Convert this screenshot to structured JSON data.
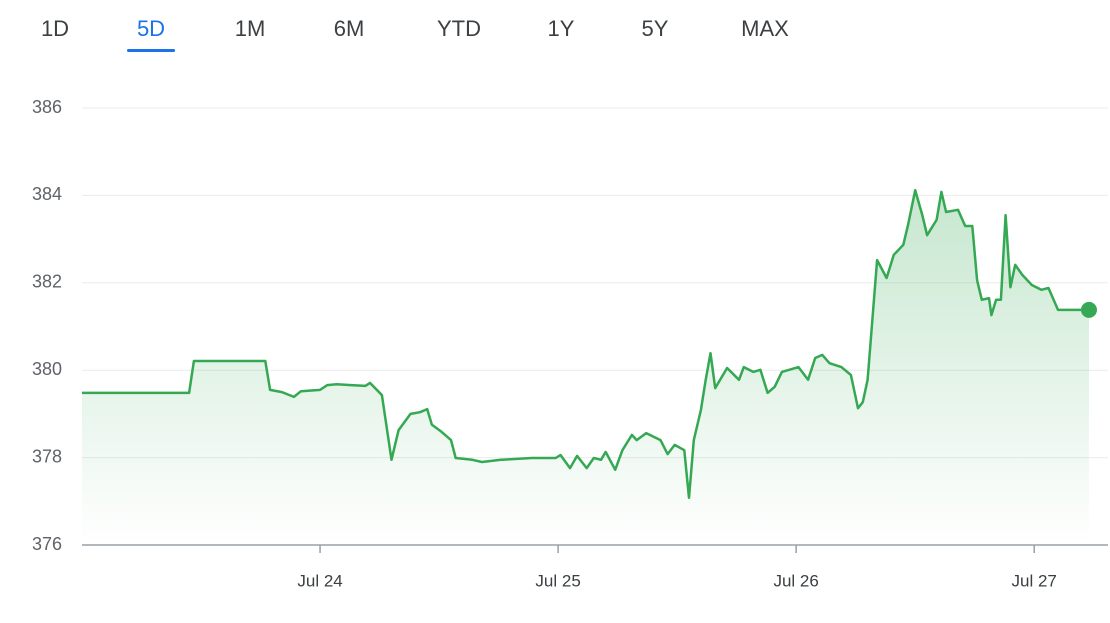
{
  "tabs": {
    "items": [
      "1D",
      "5D",
      "1M",
      "6M",
      "YTD",
      "1Y",
      "5Y",
      "MAX"
    ],
    "selected": 1
  },
  "chart_data": {
    "type": "line",
    "x": [
      23.0,
      23.45,
      23.47,
      23.77,
      23.79,
      23.84,
      23.89,
      23.92,
      24.0,
      24.03,
      24.07,
      24.13,
      24.19,
      24.21,
      24.26,
      24.3,
      24.33,
      24.38,
      24.42,
      24.45,
      24.47,
      24.51,
      24.55,
      24.57,
      24.64,
      24.68,
      24.76,
      24.89,
      24.99,
      25.01,
      25.05,
      25.08,
      25.12,
      25.15,
      25.18,
      25.2,
      25.24,
      25.27,
      25.31,
      25.33,
      25.37,
      25.43,
      25.46,
      25.49,
      25.53,
      25.55,
      25.57,
      25.6,
      25.62,
      25.64,
      25.66,
      25.71,
      25.76,
      25.78,
      25.82,
      25.85,
      25.88,
      25.91,
      25.94,
      26.01,
      26.05,
      26.08,
      26.11,
      26.14,
      26.19,
      26.23,
      26.26,
      26.28,
      26.3,
      26.34,
      26.38,
      26.41,
      26.45,
      26.47,
      26.5,
      26.53,
      26.55,
      26.59,
      26.61,
      26.63,
      26.68,
      26.71,
      26.74,
      26.76,
      26.78,
      26.81,
      26.82,
      26.84,
      26.86,
      26.88,
      26.9,
      26.92,
      26.95,
      26.99,
      27.03,
      27.06,
      27.1,
      27.23
    ],
    "series": [
      {
        "color": "#34a853",
        "values": [
          379.48,
          379.48,
          380.21,
          380.21,
          379.55,
          379.5,
          379.39,
          379.52,
          379.55,
          379.66,
          379.68,
          379.66,
          379.64,
          379.71,
          379.43,
          377.95,
          378.63,
          379.0,
          379.04,
          379.11,
          378.75,
          378.59,
          378.4,
          377.99,
          377.95,
          377.9,
          377.95,
          377.99,
          377.99,
          378.06,
          377.76,
          378.04,
          377.76,
          377.99,
          377.95,
          378.13,
          377.72,
          378.17,
          378.52,
          378.4,
          378.56,
          378.4,
          378.08,
          378.29,
          378.17,
          377.08,
          378.4,
          379.09,
          379.78,
          380.39,
          379.59,
          380.05,
          379.78,
          380.07,
          379.96,
          380.01,
          379.48,
          379.62,
          379.96,
          380.07,
          379.78,
          380.28,
          380.35,
          380.16,
          380.07,
          379.89,
          379.13,
          379.27,
          379.78,
          382.52,
          382.11,
          382.64,
          382.87,
          383.32,
          384.12,
          383.55,
          383.09,
          383.44,
          384.08,
          383.62,
          383.67,
          383.3,
          383.3,
          382.06,
          381.61,
          381.65,
          381.26,
          381.61,
          381.61,
          383.55,
          381.9,
          382.41,
          382.18,
          381.95,
          381.84,
          381.88,
          381.38,
          381.38
        ]
      }
    ],
    "xlim": [
      23,
      27.31
    ],
    "xticks": [
      {
        "value": 24,
        "label": "Jul 24"
      },
      {
        "value": 25,
        "label": "Jul 25"
      },
      {
        "value": 26,
        "label": "Jul 26"
      },
      {
        "value": 27,
        "label": "Jul 27"
      }
    ],
    "ylim": [
      376,
      386
    ],
    "yticks": [
      376,
      378,
      380,
      382,
      384,
      386
    ],
    "grid": true
  }
}
